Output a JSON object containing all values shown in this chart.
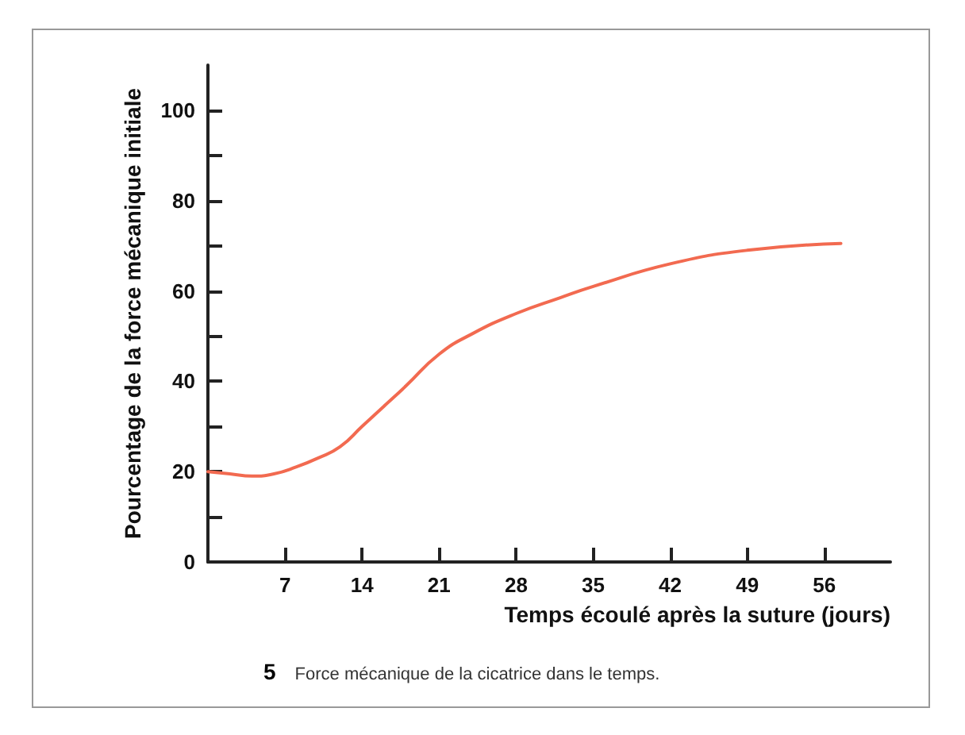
{
  "chart_data": {
    "type": "line",
    "xlabel": "Temps écoulé après la suture (jours)",
    "ylabel": "Pourcentage de la force mécanique initiale",
    "x": [
      0,
      2,
      4,
      6,
      8,
      10,
      12,
      14,
      16,
      18,
      21,
      24,
      28,
      32,
      35,
      42,
      49,
      57.5
    ],
    "series": [
      {
        "color": "#f26a50",
        "values": [
          20,
          19.5,
          19,
          19.5,
          21,
          23,
          25.5,
          30,
          34.5,
          39,
          46,
          50.5,
          55,
          58.5,
          61,
          66,
          69,
          70.5
        ]
      }
    ],
    "xlim": [
      0,
      62
    ],
    "xticks": [
      7,
      14,
      21,
      28,
      35,
      42,
      49,
      56
    ],
    "ylim": [
      0,
      110
    ],
    "yticks": [
      0,
      {
        "value": 10,
        "label": null
      },
      20,
      {
        "value": 30,
        "label": null
      },
      40,
      {
        "value": 50,
        "label": null
      },
      60,
      {
        "value": 70,
        "label": null
      },
      80,
      {
        "value": 90,
        "label": null
      },
      100
    ],
    "grid": false,
    "marker": "none",
    "line_style": "solid",
    "annotations": [
      "5",
      "Force mécanique de la cicatrice dans le temps."
    ]
  }
}
